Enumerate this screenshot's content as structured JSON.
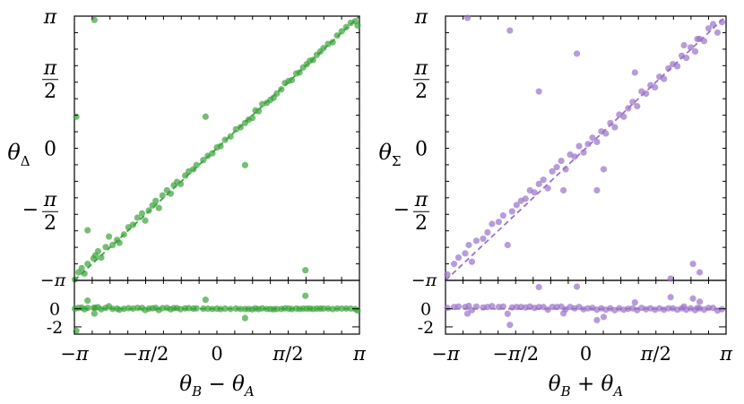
{
  "chart_data": [
    {
      "type": "scatter",
      "title": "",
      "ylabel_main": "θ",
      "ylabel_sub": "Δ",
      "xlabel_parts": {
        "a": "θ",
        "a_sub": "B",
        "op": " − ",
        "b": "θ",
        "b_sub": "A"
      },
      "color": "#3aa33a",
      "xlim": [
        -3.1416,
        3.1416
      ],
      "ylim_main": [
        -3.1416,
        3.1416
      ],
      "ylim_residual": [
        -2.8,
        3.1416
      ],
      "fit_line": {
        "slope": 1,
        "intercept": 0
      },
      "x_tick_labels": [
        "−π",
        "−π/2",
        "0",
        "π/2",
        "π"
      ],
      "y_tick_labels": [
        "−π/2",
        "0",
        "π/2",
        "π"
      ],
      "residual_tick_labels": [
        "−π",
        "0",
        "-2"
      ],
      "points": [
        [
          -3.13,
          -3.12
        ],
        [
          -3.05,
          -2.95
        ],
        [
          -2.98,
          -2.85
        ],
        [
          -2.92,
          -2.98
        ],
        [
          -2.85,
          -2.75
        ],
        [
          -2.72,
          -2.62
        ],
        [
          -2.68,
          -2.55
        ],
        [
          -2.62,
          -2.45
        ],
        [
          -2.55,
          -2.6
        ],
        [
          -2.45,
          -2.35
        ],
        [
          -2.38,
          -2.1
        ],
        [
          -2.3,
          -2.3
        ],
        [
          -2.2,
          -2.18
        ],
        [
          -2.15,
          -2.25
        ],
        [
          -2.05,
          -2.05
        ],
        [
          -1.95,
          -1.88
        ],
        [
          -1.85,
          -1.82
        ],
        [
          -1.75,
          -1.65
        ],
        [
          -1.65,
          -1.55
        ],
        [
          -1.58,
          -1.72
        ],
        [
          -1.5,
          -1.48
        ],
        [
          -1.42,
          -1.36
        ],
        [
          -1.35,
          -1.25
        ],
        [
          -1.28,
          -1.42
        ],
        [
          -1.2,
          -1.12
        ],
        [
          -1.1,
          -1.0
        ],
        [
          -1.02,
          -1.08
        ],
        [
          -0.95,
          -0.88
        ],
        [
          -0.88,
          -0.8
        ],
        [
          -0.8,
          -0.85
        ],
        [
          -0.7,
          -0.65
        ],
        [
          -0.62,
          -0.55
        ],
        [
          -0.52,
          -0.5
        ],
        [
          -0.45,
          -0.4
        ],
        [
          -0.3,
          -0.28
        ],
        [
          -0.2,
          -0.18
        ],
        [
          -0.1,
          -0.12
        ],
        [
          0.0,
          0.02
        ],
        [
          0.08,
          0.05
        ],
        [
          0.18,
          0.2
        ],
        [
          0.3,
          0.28
        ],
        [
          0.42,
          0.45
        ],
        [
          0.52,
          0.5
        ],
        [
          0.62,
          0.6
        ],
        [
          0.7,
          0.68
        ],
        [
          0.78,
          0.72
        ],
        [
          0.85,
          0.9
        ],
        [
          0.92,
          0.88
        ],
        [
          1.0,
          1.05
        ],
        [
          1.1,
          1.08
        ],
        [
          1.18,
          1.15
        ],
        [
          1.25,
          1.2
        ],
        [
          1.32,
          1.3
        ],
        [
          1.42,
          1.4
        ],
        [
          1.5,
          1.55
        ],
        [
          1.58,
          1.6
        ],
        [
          1.65,
          1.62
        ],
        [
          1.75,
          1.78
        ],
        [
          1.82,
          1.8
        ],
        [
          1.9,
          1.92
        ],
        [
          1.98,
          2.0
        ],
        [
          2.05,
          2.08
        ],
        [
          2.12,
          2.1
        ],
        [
          2.2,
          2.22
        ],
        [
          2.28,
          2.3
        ],
        [
          2.35,
          2.38
        ],
        [
          2.45,
          2.48
        ],
        [
          2.55,
          2.52
        ],
        [
          2.65,
          2.68
        ],
        [
          2.75,
          2.78
        ],
        [
          2.85,
          2.88
        ],
        [
          2.95,
          2.98
        ],
        [
          3.05,
          3.02
        ],
        [
          3.1,
          2.92
        ],
        [
          1.95,
          -2.9
        ],
        [
          0.62,
          -0.4
        ],
        [
          -0.25,
          0.75
        ],
        [
          -3.1,
          0.75
        ],
        [
          -2.7,
          3.05
        ],
        [
          -2.85,
          -1.95
        ]
      ]
    },
    {
      "type": "scatter",
      "title": "",
      "ylabel_main": "θ",
      "ylabel_sub": "Σ",
      "xlabel_parts": {
        "a": "θ",
        "a_sub": "B",
        "op": " + ",
        "b": "θ",
        "b_sub": "A"
      },
      "color": "#9a72c8",
      "xlim": [
        -3.1416,
        3.1416
      ],
      "ylim_main": [
        -3.1416,
        3.1416
      ],
      "ylim_residual": [
        -2.8,
        3.1416
      ],
      "fit_line": {
        "slope": 1,
        "intercept": 0
      },
      "x_tick_labels": [
        "−π",
        "−π/2",
        "0",
        "π/2",
        "π"
      ],
      "y_tick_labels": [
        "−π/2",
        "0",
        "π/2",
        "π"
      ],
      "residual_tick_labels": [
        "−π",
        "0",
        "-2"
      ],
      "points": [
        [
          -3.1,
          -3.0
        ],
        [
          -2.95,
          -2.75
        ],
        [
          -2.85,
          -2.6
        ],
        [
          -2.7,
          -2.5
        ],
        [
          -2.62,
          -2.3
        ],
        [
          -2.55,
          -2.7
        ],
        [
          -2.45,
          -2.2
        ],
        [
          -2.3,
          -2.15
        ],
        [
          -2.2,
          -2.0
        ],
        [
          -2.1,
          -1.8
        ],
        [
          -1.95,
          -1.75
        ],
        [
          -1.85,
          -1.6
        ],
        [
          -1.75,
          -2.3
        ],
        [
          -1.65,
          -1.5
        ],
        [
          -1.55,
          -1.35
        ],
        [
          -1.45,
          -1.25
        ],
        [
          -1.35,
          -1.2
        ],
        [
          -1.25,
          -1.0
        ],
        [
          -1.15,
          -1.05
        ],
        [
          -1.05,
          -0.85
        ],
        [
          -0.95,
          -0.75
        ],
        [
          -0.85,
          -0.95
        ],
        [
          -0.75,
          -0.55
        ],
        [
          -0.65,
          -0.45
        ],
        [
          -0.55,
          -0.3
        ],
        [
          -0.45,
          -0.5
        ],
        [
          -0.35,
          -0.15
        ],
        [
          -0.25,
          -0.2
        ],
        [
          -0.15,
          0.05
        ],
        [
          -0.05,
          -0.1
        ],
        [
          0.05,
          0.1
        ],
        [
          0.15,
          0.25
        ],
        [
          0.25,
          0.15
        ],
        [
          0.35,
          0.4
        ],
        [
          0.45,
          0.35
        ],
        [
          0.55,
          0.6
        ],
        [
          0.65,
          0.5
        ],
        [
          0.75,
          0.8
        ],
        [
          0.85,
          0.75
        ],
        [
          0.95,
          0.95
        ],
        [
          1.05,
          1.1
        ],
        [
          1.15,
          1.0
        ],
        [
          1.25,
          1.35
        ],
        [
          1.35,
          1.3
        ],
        [
          1.45,
          1.5
        ],
        [
          1.55,
          1.45
        ],
        [
          1.65,
          1.7
        ],
        [
          1.75,
          1.65
        ],
        [
          1.85,
          1.9
        ],
        [
          1.95,
          2.0
        ],
        [
          2.05,
          1.95
        ],
        [
          2.15,
          2.2
        ],
        [
          2.25,
          2.15
        ],
        [
          2.35,
          2.4
        ],
        [
          2.45,
          2.3
        ],
        [
          2.55,
          2.6
        ],
        [
          2.65,
          2.55
        ],
        [
          2.75,
          2.85
        ],
        [
          2.85,
          2.95
        ],
        [
          2.95,
          2.75
        ],
        [
          3.05,
          3.0
        ],
        [
          2.4,
          -2.75
        ],
        [
          2.55,
          -2.95
        ],
        [
          1.9,
          -3.1
        ],
        [
          -2.65,
          3.1
        ],
        [
          -1.7,
          2.8
        ],
        [
          -1.05,
          1.35
        ],
        [
          -0.2,
          2.25
        ],
        [
          0.25,
          -1.0
        ],
        [
          0.4,
          -0.5
        ],
        [
          1.1,
          1.8
        ],
        [
          2.2,
          2.45
        ],
        [
          2.5,
          2.6
        ],
        [
          -0.5,
          -1.0
        ]
      ]
    }
  ]
}
